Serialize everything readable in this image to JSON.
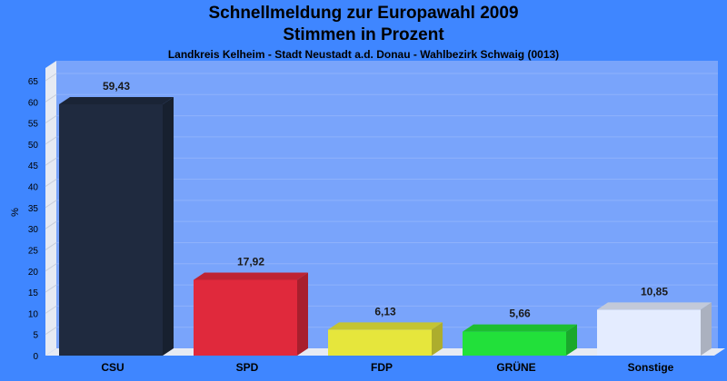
{
  "chart_data": {
    "type": "bar",
    "title": "Schnellmeldung zur Europawahl 2009",
    "subtitle": "Stimmen in Prozent",
    "caption": "Landkreis Kelheim - Stadt Neustadt a.d. Donau - Wahlbezirk Schwaig (0013)",
    "ylabel": "%",
    "xlabel": "",
    "ylim": [
      0,
      68
    ],
    "yticks": [
      0,
      5,
      10,
      15,
      20,
      25,
      30,
      35,
      40,
      45,
      50,
      55,
      60,
      65
    ],
    "grid": true,
    "categories": [
      "CSU",
      "SPD",
      "FDP",
      "GRÜNE",
      "Sonstige"
    ],
    "values": [
      59.43,
      17.92,
      6.13,
      5.66,
      10.85
    ],
    "value_labels": [
      "59,43",
      "17,92",
      "6,13",
      "5,66",
      "10,85"
    ],
    "colors": [
      "#1f2a3f",
      "#e0293c",
      "#e6e63c",
      "#22e03a",
      "#e4ecff"
    ]
  }
}
